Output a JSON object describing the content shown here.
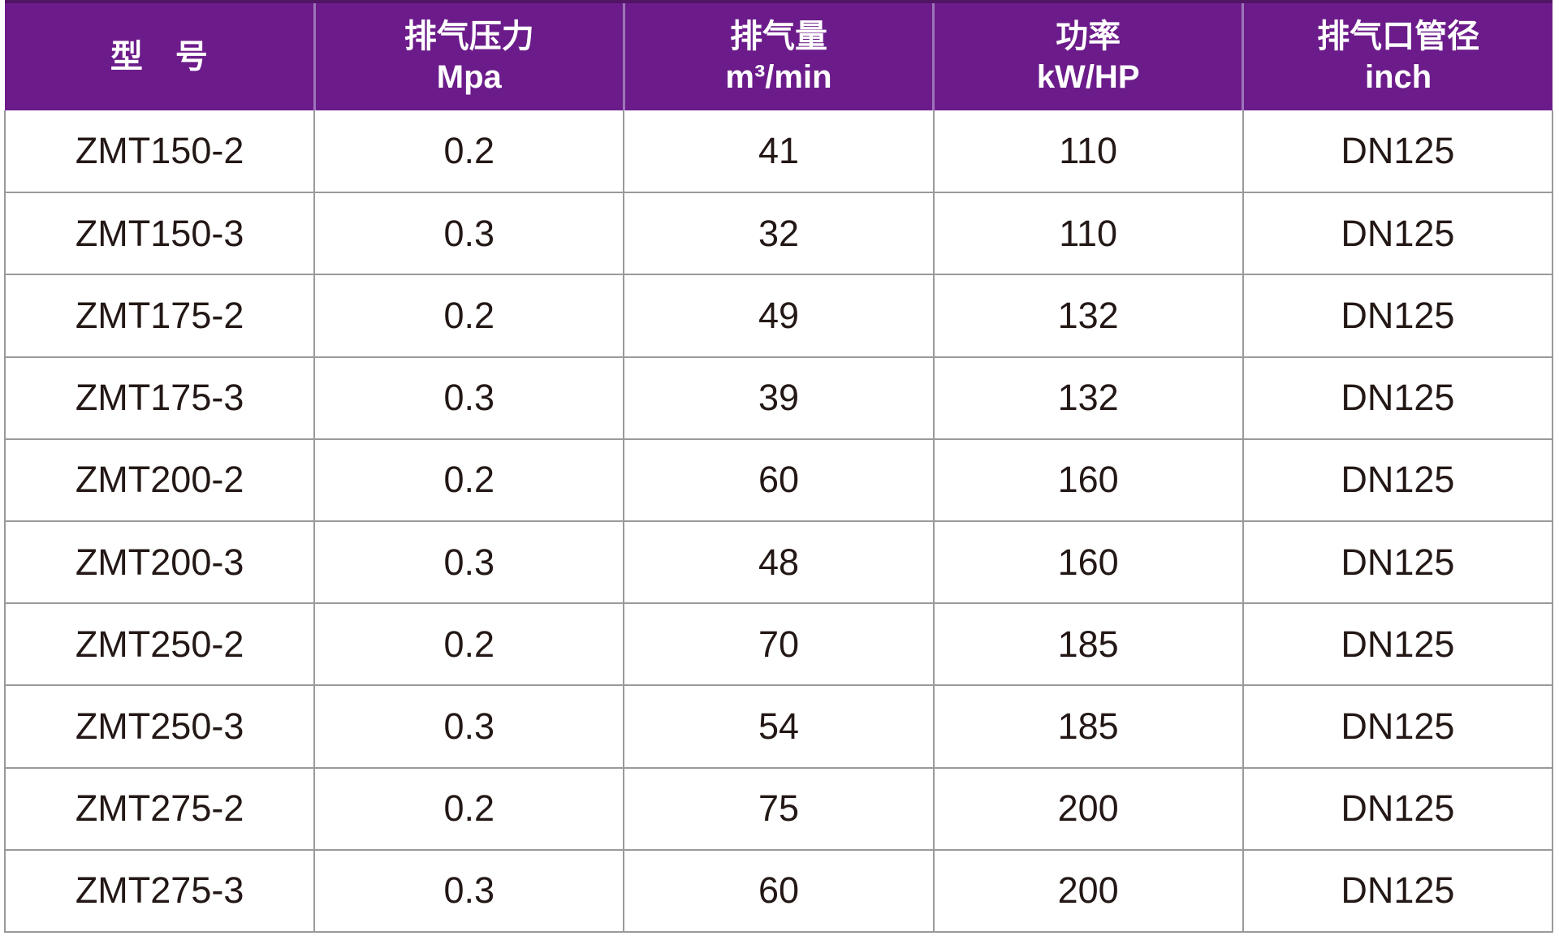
{
  "table": {
    "columns": [
      {
        "line1": "型　号",
        "line2": ""
      },
      {
        "line1": "排气压力",
        "line2": "Mpa"
      },
      {
        "line1": "排气量",
        "line2": "m³/min"
      },
      {
        "line1": "功率",
        "line2": "kW/HP"
      },
      {
        "line1": "排气口管径",
        "line2": "inch"
      }
    ],
    "rows": [
      {
        "model": "ZMT150-2",
        "pressure_mpa": "0.2",
        "volume_m3_min": "41",
        "power_kw_hp": "110",
        "outlet_diameter": "DN125"
      },
      {
        "model": "ZMT150-3",
        "pressure_mpa": "0.3",
        "volume_m3_min": "32",
        "power_kw_hp": "110",
        "outlet_diameter": "DN125"
      },
      {
        "model": "ZMT175-2",
        "pressure_mpa": "0.2",
        "volume_m3_min": "49",
        "power_kw_hp": "132",
        "outlet_diameter": "DN125"
      },
      {
        "model": "ZMT175-3",
        "pressure_mpa": "0.3",
        "volume_m3_min": "39",
        "power_kw_hp": "132",
        "outlet_diameter": "DN125"
      },
      {
        "model": "ZMT200-2",
        "pressure_mpa": "0.2",
        "volume_m3_min": "60",
        "power_kw_hp": "160",
        "outlet_diameter": "DN125"
      },
      {
        "model": "ZMT200-3",
        "pressure_mpa": "0.3",
        "volume_m3_min": "48",
        "power_kw_hp": "160",
        "outlet_diameter": "DN125"
      },
      {
        "model": "ZMT250-2",
        "pressure_mpa": "0.2",
        "volume_m3_min": "70",
        "power_kw_hp": "185",
        "outlet_diameter": "DN125"
      },
      {
        "model": "ZMT250-3",
        "pressure_mpa": "0.3",
        "volume_m3_min": "54",
        "power_kw_hp": "185",
        "outlet_diameter": "DN125"
      },
      {
        "model": "ZMT275-2",
        "pressure_mpa": "0.2",
        "volume_m3_min": "75",
        "power_kw_hp": "200",
        "outlet_diameter": "DN125"
      },
      {
        "model": "ZMT275-3",
        "pressure_mpa": "0.3",
        "volume_m3_min": "60",
        "power_kw_hp": "200",
        "outlet_diameter": "DN125"
      }
    ]
  },
  "colors": {
    "header_bg": "#6C1C8A",
    "header_text": "#ffffff",
    "header_divider": "#9d74ba",
    "header_top_edge": "#511563",
    "grid": "#9a9a9a",
    "cell_text": "#231815"
  }
}
